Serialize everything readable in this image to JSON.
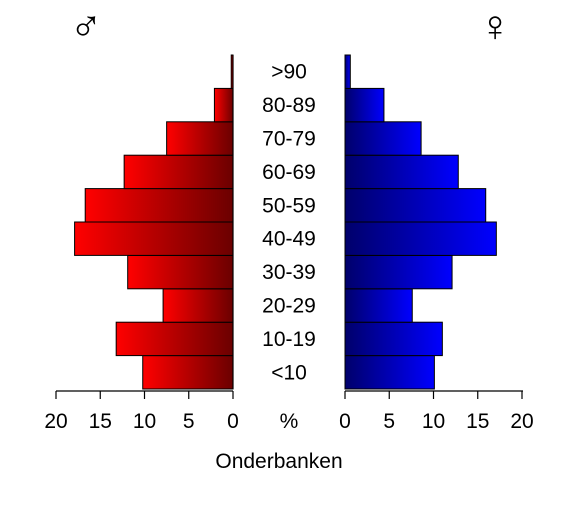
{
  "chart_data": {
    "type": "bar",
    "orientation": "horizontal",
    "layout": "population-pyramid",
    "categories": [
      "<10",
      "10-19",
      "20-29",
      "30-39",
      "40-49",
      "50-59",
      "60-69",
      "70-79",
      "80-89",
      ">90"
    ],
    "series": [
      {
        "name": "♂",
        "side": "left",
        "color_dark": "#6b0000",
        "color_light": "#ff0000",
        "values": [
          10.2,
          13.2,
          7.9,
          11.9,
          17.9,
          16.7,
          12.3,
          7.5,
          2.1,
          0.2
        ]
      },
      {
        "name": "♀",
        "side": "right",
        "color_dark": "#00006b",
        "color_light": "#0000ff",
        "values": [
          10.1,
          11.0,
          7.6,
          12.1,
          17.1,
          15.9,
          12.8,
          8.6,
          4.4,
          0.6
        ]
      }
    ],
    "x_ticks": [
      0,
      5,
      10,
      15,
      20
    ],
    "xlim": [
      0,
      20
    ],
    "unit_label": "%",
    "xlabel": "Onderbanken",
    "grid": false,
    "legend": "none"
  }
}
